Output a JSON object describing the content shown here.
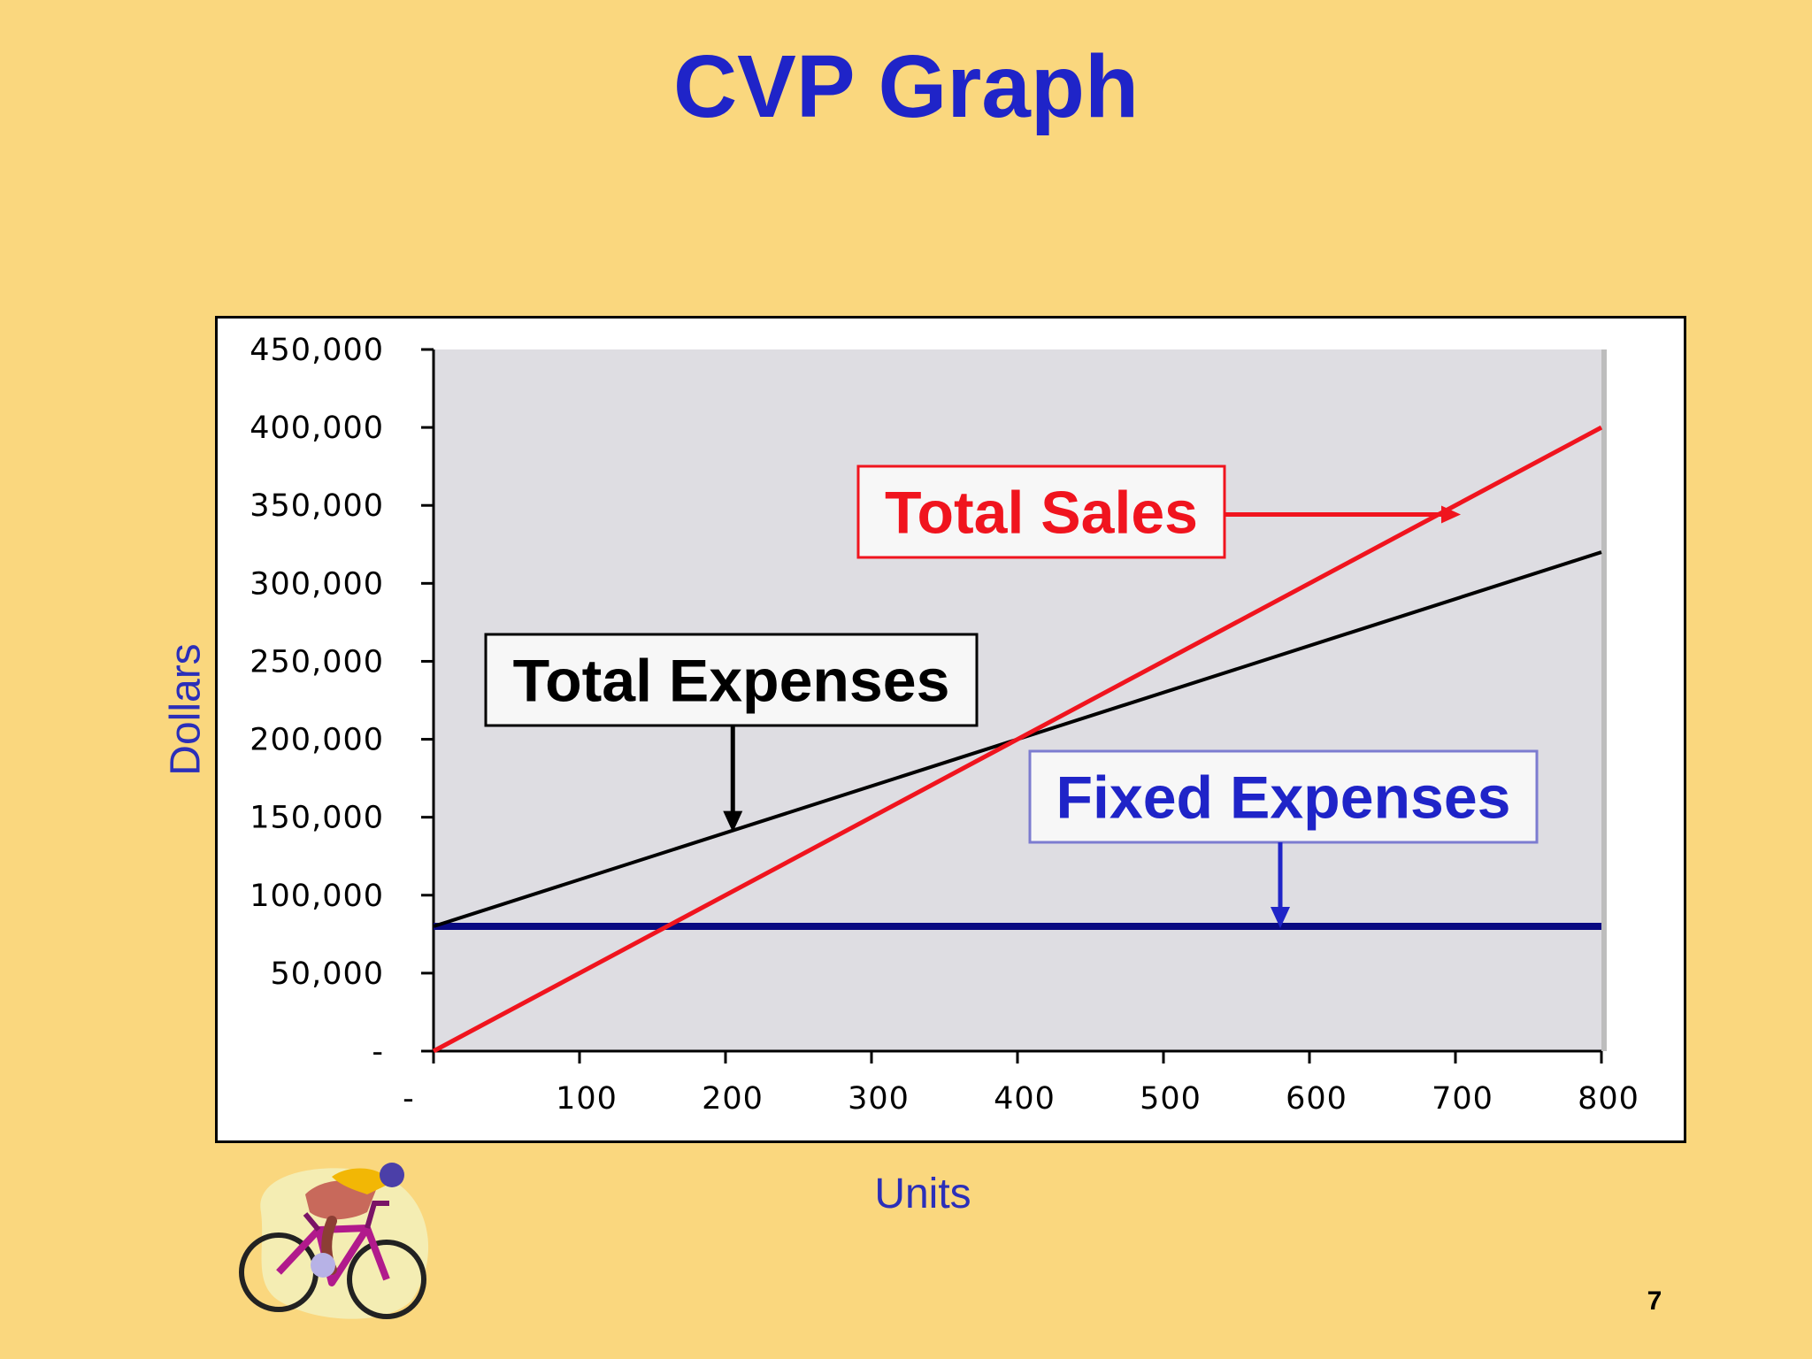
{
  "slide": {
    "title": "CVP Graph",
    "page_number": "7"
  },
  "colors": {
    "background": "#FAD77E",
    "title": "#1F24C8",
    "plot_area": "#DEDDE2",
    "total_sales": "#F0141E",
    "total_expenses": "#000000",
    "fixed_expenses": "#0A0A82",
    "axis_label": "#2B2FB9"
  },
  "icons": {
    "clipart": "cyclist-icon"
  },
  "chart_data": {
    "type": "line",
    "title": "",
    "xlabel": "Units",
    "ylabel": "Dollars",
    "xlim": [
      0,
      800
    ],
    "ylim": [
      0,
      450000
    ],
    "x_ticks": [
      0,
      100,
      200,
      300,
      400,
      500,
      600,
      700,
      800
    ],
    "x_tick_labels": [
      "-",
      "100",
      "200",
      "300",
      "400",
      "500",
      "600",
      "700",
      "800"
    ],
    "y_ticks": [
      0,
      50000,
      100000,
      150000,
      200000,
      250000,
      300000,
      350000,
      400000,
      450000
    ],
    "y_tick_labels": [
      "-",
      "50,000",
      "100,000",
      "150,000",
      "200,000",
      "250,000",
      "300,000",
      "350,000",
      "400,000",
      "450,000"
    ],
    "x": [
      0,
      800
    ],
    "series": [
      {
        "key": "total_sales",
        "values": [
          0,
          400000
        ]
      },
      {
        "key": "total_expenses",
        "values": [
          80000,
          320000
        ]
      },
      {
        "key": "fixed_expenses",
        "values": [
          80000,
          80000
        ]
      }
    ],
    "annotations": [
      {
        "series": "total_sales",
        "text": "Total Sales",
        "points_to_x": 700
      },
      {
        "series": "total_expenses",
        "text": "Total Expenses",
        "points_to_x": 205
      },
      {
        "series": "fixed_expenses",
        "text": "Fixed Expenses",
        "points_to_x": 580
      }
    ],
    "grid": false,
    "legend": "none"
  }
}
